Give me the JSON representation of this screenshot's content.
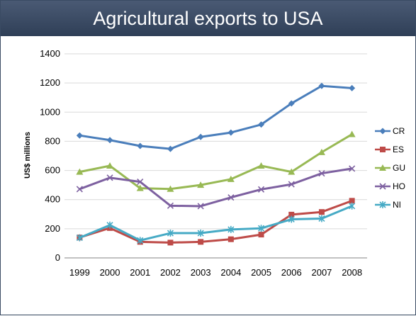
{
  "slide": {
    "title": "Agricultural exports to USA"
  },
  "chart_data": {
    "type": "line",
    "title": "",
    "xlabel": "",
    "ylabel": "US$ millions",
    "ylim": [
      0,
      1400
    ],
    "yticks": [
      0,
      200,
      400,
      600,
      800,
      1000,
      1200,
      1400
    ],
    "x": [
      "1999",
      "2000",
      "2001",
      "2002",
      "2003",
      "2004",
      "2005",
      "2006",
      "2007",
      "2008"
    ],
    "grid": true,
    "legend_position": "right",
    "series": [
      {
        "name": "CR",
        "color": "#4a7ebb",
        "marker": "diamond",
        "values": [
          840,
          808,
          768,
          748,
          830,
          860,
          915,
          1060,
          1180,
          1165
        ]
      },
      {
        "name": "ES",
        "color": "#be4b48",
        "marker": "square",
        "values": [
          140,
          205,
          110,
          105,
          110,
          128,
          160,
          297,
          315,
          392
        ]
      },
      {
        "name": "GU",
        "color": "#98b954",
        "marker": "triangle",
        "values": [
          590,
          632,
          478,
          473,
          500,
          540,
          632,
          590,
          725,
          848
        ]
      },
      {
        "name": "HO",
        "color": "#7d60a0",
        "marker": "x",
        "values": [
          472,
          550,
          522,
          358,
          355,
          415,
          470,
          505,
          580,
          613
        ]
      },
      {
        "name": "NI",
        "color": "#46aac5",
        "marker": "star",
        "values": [
          138,
          225,
          120,
          170,
          170,
          195,
          203,
          265,
          270,
          356
        ]
      }
    ]
  }
}
